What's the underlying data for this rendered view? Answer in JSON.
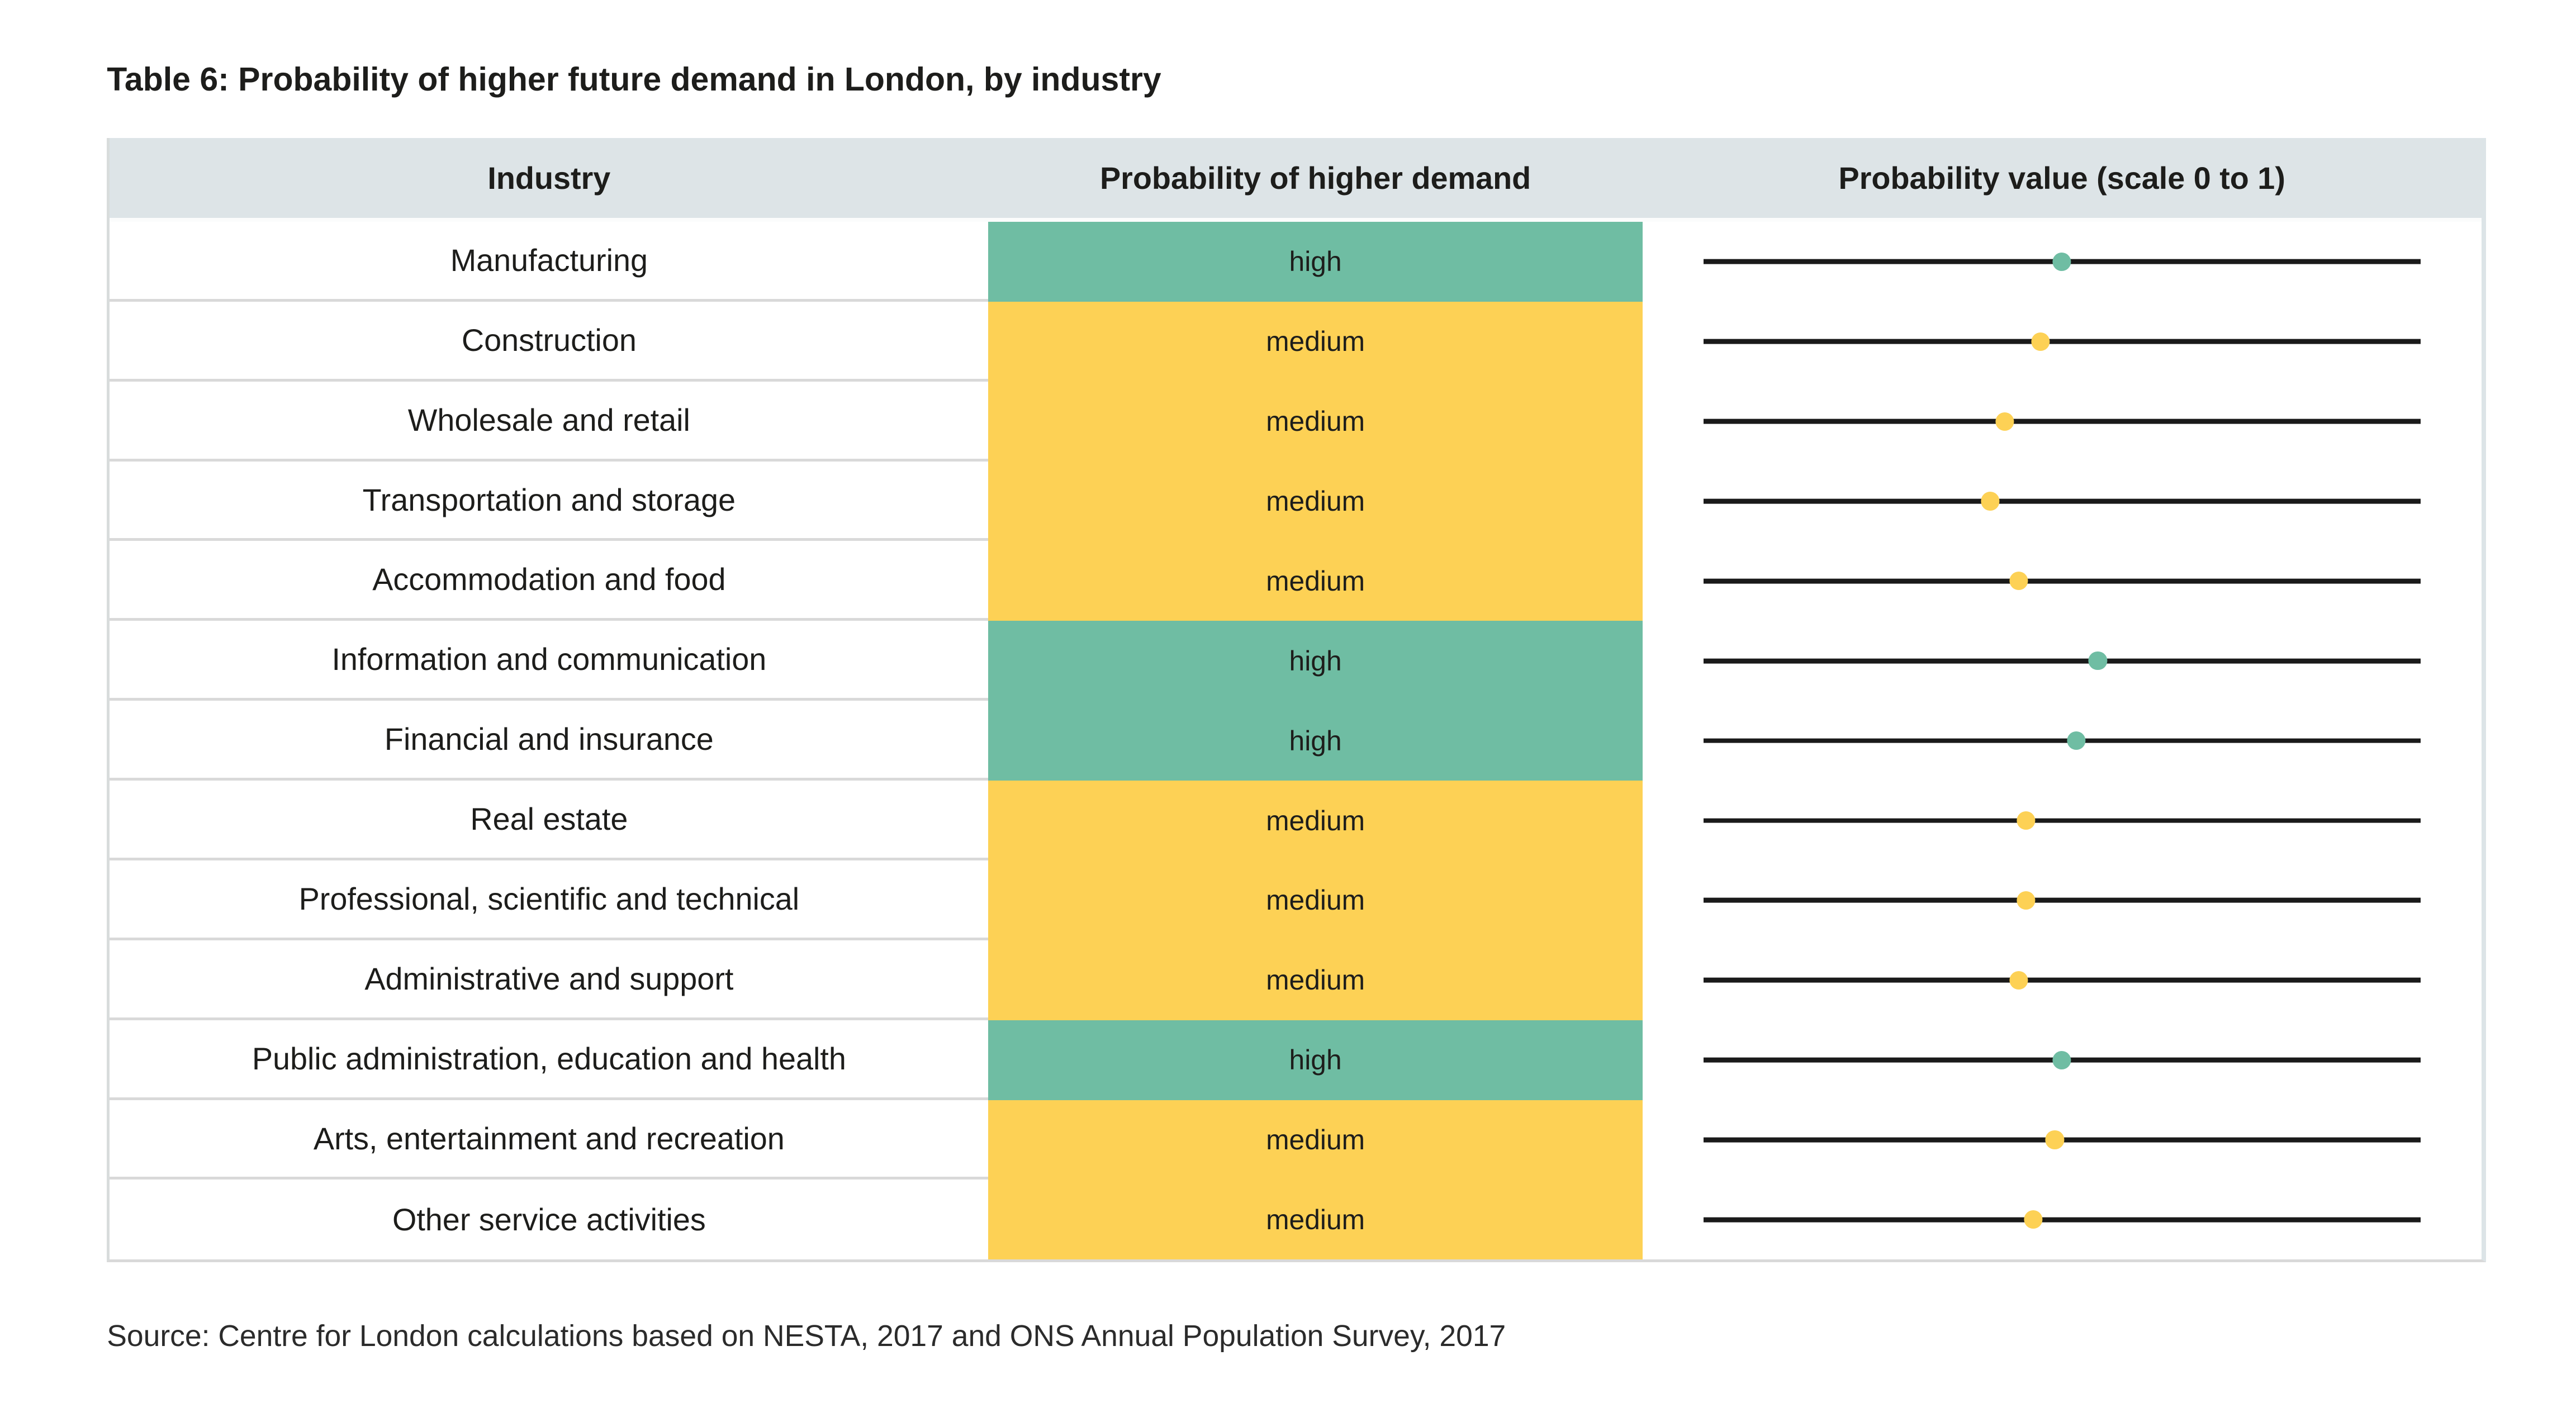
{
  "title": "Table 6: Probability of higher future demand in London, by industry",
  "source": "Source: Centre for London calculations based on NESTA, 2017 and ONS Annual Population Survey, 2017",
  "columns": [
    "Industry",
    "Probability of higher demand",
    "Probability value  (scale 0 to 1)"
  ],
  "colors": {
    "high": "#6fbda3",
    "medium": "#fdd155",
    "header_bg": "#dde4e7",
    "row_border": "#d9d9d9",
    "line": "#1a1a1a",
    "text": "#1d1d1b"
  },
  "rows": [
    {
      "industry": "Manufacturing",
      "demand": "high",
      "value": 0.5
    },
    {
      "industry": "Construction",
      "demand": "medium",
      "value": 0.47
    },
    {
      "industry": "Wholesale and retail",
      "demand": "medium",
      "value": 0.42
    },
    {
      "industry": "Transportation and storage",
      "demand": "medium",
      "value": 0.4
    },
    {
      "industry": "Accommodation and food",
      "demand": "medium",
      "value": 0.44
    },
    {
      "industry": "Information and communication",
      "demand": "high",
      "value": 0.55
    },
    {
      "industry": "Financial and insurance",
      "demand": "high",
      "value": 0.52
    },
    {
      "industry": "Real estate",
      "demand": "medium",
      "value": 0.45
    },
    {
      "industry": "Professional, scientific and technical",
      "demand": "medium",
      "value": 0.45
    },
    {
      "industry": "Administrative and support",
      "demand": "medium",
      "value": 0.44
    },
    {
      "industry": "Public administration, education and health",
      "demand": "high",
      "value": 0.5
    },
    {
      "industry": "Arts, entertainment and recreation",
      "demand": "medium",
      "value": 0.49
    },
    {
      "industry": "Other service activities",
      "demand": "medium",
      "value": 0.46
    }
  ],
  "chart_data": {
    "type": "table",
    "title": "Table 6: Probability of higher future demand in London, by industry",
    "columns": [
      "Industry",
      "Probability of higher demand",
      "Probability value (scale 0 to 1)"
    ],
    "categories": [
      "Manufacturing",
      "Construction",
      "Wholesale and retail",
      "Transportation and storage",
      "Accommodation and food",
      "Information and communication",
      "Financial and insurance",
      "Real estate",
      "Professional, scientific and technical",
      "Administrative and support",
      "Public administration, education and health",
      "Arts, entertainment and recreation",
      "Other service activities"
    ],
    "series": [
      {
        "name": "Probability of higher demand",
        "values": [
          "high",
          "medium",
          "medium",
          "medium",
          "medium",
          "high",
          "high",
          "medium",
          "medium",
          "medium",
          "high",
          "medium",
          "medium"
        ]
      },
      {
        "name": "Probability value (scale 0 to 1)",
        "values": [
          0.5,
          0.47,
          0.42,
          0.4,
          0.44,
          0.55,
          0.52,
          0.45,
          0.45,
          0.44,
          0.5,
          0.49,
          0.46
        ]
      }
    ],
    "xlim": [
      0,
      1
    ],
    "grid": false,
    "legend": false,
    "notes": "Dot plot per row: green dots = high probability rows, yellow dots = medium probability rows",
    "source": "Source: Centre for London calculations based on NESTA, 2017 and ONS Annual Population Survey, 2017"
  }
}
